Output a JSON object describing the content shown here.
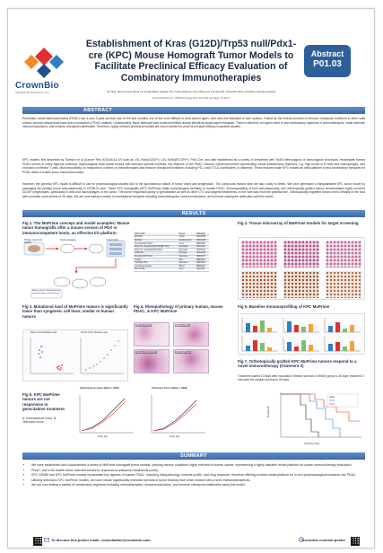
{
  "header": {
    "logo_name": "CrownBio",
    "logo_tagline": "CROWN BIOSCIENCE INC.",
    "title": "Establishment of Kras (G12D)/Trp53 null/Pdx1-cre (KPC) Mouse Homograft Tumor Models to Facilitate Preclinical Efficacy Evaluation of Combinatory Immunotherapies",
    "authors": "Lily Teng, Yanrui Guang, Wenqi Liu, Jinxiao Wang, Hongyan Sun, Annie Xiaoyu An, Likun Zhang, Jie Cai, Qian Shi, Jean-Pierre Wery, and Henry Xiaoxiang Ouyang",
    "affiliation": "Crown Bioscience Inc., 16550 Technology Drive, Suite 300, San Diego, CA 92127",
    "abstract_label": "Abstract",
    "abstract_number": "P01.03"
  },
  "sections": {
    "abstract": "ABSTRACT",
    "results": "RESULTS",
    "summary": "SUMMARY"
  },
  "abstract": {
    "p1": "Pancreatic ductal adenocarcinoma (PDAC) has a poor 5-year survival rate of 6% and remains one of the most difficult to treat cancer types, with very few standard of care options. Fueled by the clinical success of immune checkpoint inhibitors in other solid tumors, several clinical trials have been conducted in PDAC patients. Unfortunately, these attempts have achieved limited clinical benefit as single agent therapies. There is therefore an urgent need to test combinatory regimens of chemotherapies, small molecule immunomodulators, and immune checkpoint antibodies. Therefore, highly relevant preclinical models are much needed for proof of principle efficacy evaluation studies.",
    "p2": "KPC models, first described by Tuveson et al (Cancer Res 2016;64:42-47) such as LSL-Kras(G12D/+); LSL-Trp53(R172H/+); Pdx1-Cre, and later established as a variety of derivatives with Trp53 heterozygous or homozygous knockouts, recapitulate human PDAC tumors in many aspects including: morphological renal ductal tumors with enriched stromal contents, key features of the PDAC immune microenvironment representing robust inflammatory reactions, e.g. high levels of B cells and macrophages, and exclusion of effector T cells. Most importantly, no response to a series of chemotherapies and immune checkpoint inhibitors, including PD-1 and CTLA-4 antibodies, is observed. These features make KPC models an ideal platform to test combinatory therapies for PDAC within a hostile tumor microenvironment.",
    "p3": "However, the parental KPC model is difficult to use for pharmacological studies due to the spontaneous nature of tumor onset and progression. The compound mutant mice are also costly to breed. We have generated a transplantable KPC tumor model by passaging the primary tumor subcutaneously in C57BL/6 mice. These KPC homografts (KPC MuPrime) retain morphological similarity to human PDAC, immunoprofiling of both subcutaneously and orthotopically grafted tumors demonstrated highly enriched CD45+ lymphocytes, particularly B cells and macrophages, in the tumor. The tumor responded poorly to gemcitabine as well as other CTX and targeted treatments, in line with data from the parental line. Orthotopically engrafted tumors led to lethality of the host with a median survival time of 25 days. We are now testing a variety of combinatory therapies including chemotherapies, immunomodulators, and immune checkpoint antibodies with this model."
  },
  "figures": {
    "fig1_title": "Fig 1. The MuPrime concept and model examples: Mouse tumor homografts offer a mouse version of PDX in immunocompetent hosts, an effective I/O platform",
    "fig1_brand": "MuPrime",
    "fig1_labels": [
      "Primary tumor from GEMM",
      "Serial passaging",
      "Tumor bank",
      "Efficacy study: Targeted therapy, Chemotherapy, Immunotherapy"
    ],
    "fig2_title": "Fig 2. Tissue microarray of MuPrime models for target screening",
    "fig3_title": "Fig 3. Mutational load of MuPrime tumors is significantly lower than syngeneic cell lines, similar to human tumors",
    "fig3_labels": [
      "Mouse Tumor Mutation Load",
      "Human Tumor Mutation Load"
    ],
    "fig4_title": "Fig 4. Histopathology of primary human, mouse PDAC, & KPC MuPrime",
    "fig4_labels": [
      "Human PDAC",
      "Mouse PDAC",
      "Human PDAC/KPC",
      "KPC MuPrime"
    ],
    "fig5_title": "Fig 5. Baseline immunoprofiling of KPC MuPrime",
    "fig6_title": "Fig 6. KPC MuPrime tumors are not responsive to gemcitabine treatment",
    "fig6_sub": "A: Subcutaneous tumor, B: Orthotopic tumor",
    "fig6_panelA": "Subcutaneous tumor (Mean ± SEM)",
    "fig6_panelB": "Orthotopic Tumor (Mean ± SEM)",
    "fig6_xlabel": "Study Day",
    "fig6_ylabel": "Tumor Volume",
    "fig7_title": "Fig 7. Orthotopically grafted KPC MuPrime tumors respond to a novel immunotherapy (treatment 3)",
    "fig7_sub": "Treatment started 10 days after inoculation. Median survival of vehicle group is 25 days; treatment 3 extended the median survival to 40 days",
    "fig7_xlabel": "Treatment Day",
    "fig7_ylabel": "Survival (%)"
  },
  "model_table": [
    [
      "MRT-LTB4*",
      "Breast",
      "HBR4016"
    ],
    [
      "APC/MI*",
      "Colon",
      "HCR3558"
    ],
    [
      "Cpt/Nxx",
      "Endometrium",
      "HNEC008"
    ],
    [
      "Kras(G12D)/Trp53-/-",
      "Lung",
      "HBR4050"
    ],
    [
      "Pdx1-Cre; Kras(G12D)/Trp53(R172H)",
      "Pancreas",
      "HPR1001"
    ],
    [
      "Pdx1-Cre; Kras(G12D)/Trp53-/-",
      "Pancreas",
      "HPR5100"
    ],
    [
      "PTEN/CP*",
      "Prostate",
      "HPR1006"
    ],
    [
      "Kras(G12D)/Trp53-/-",
      "Sarcoma",
      "HBR4037"
    ],
    [
      "Trp53-/-",
      "Skin",
      "HBE1001"
    ],
    [
      "Trp53(R172H)",
      "Sarcoma",
      "HBR4029"
    ],
    [
      "Lymphoma mouse",
      "Blood",
      "HBM1001"
    ],
    [
      "B6L-5738a",
      "Liver",
      "HLR1001"
    ]
  ],
  "summary": [
    "We have established and characterized a series of MuPrime homograft tumor models, carrying various mutations highly relevant to human cancer, representing a highly valuable model platform for cancer immunotherapy evaluation.",
    "PDAC, due to its hostile tumor microenvironment, responds to anticancer treatments poorly.",
    "KPC GEMM and KPC MuPrime models recapitulate key aspects of human PDAC, including histopathology, immune profile, and drug response, therefore offering an ideal model platform for in vivo pharmacological research into PDAC.",
    "Utilizing orthotopic KPC MuPrime models, we have shown significantly extended survival of tumor bearing mice when treated with a novel immunotherapeutic.",
    "We are now testing a variety of combinatory regimens including chemotherapies, immunomodulators, and immune checkpoint antibodies using this model."
  ],
  "footer": {
    "contact": "To discuss this poster email: consultation@crownbio.com",
    "web": "crownbio.com/bio-poster"
  },
  "colors": {
    "brand_blue": "#1f4e8c",
    "brand_red": "#e0312f",
    "bar_blue": "#3d6aa8",
    "badge_blue": "#2d5f9a"
  }
}
